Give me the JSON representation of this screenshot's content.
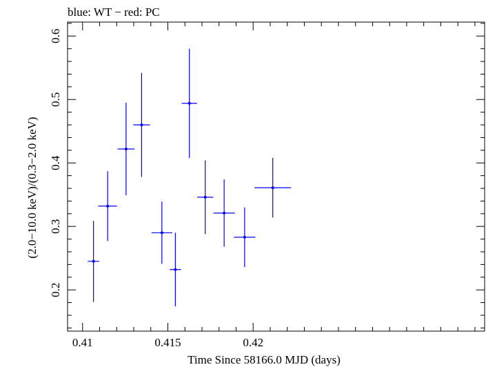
{
  "chart_data": {
    "type": "scatter",
    "title": "blue: WT − red: PC",
    "xlabel": "Time Since 58166.0 MJD (days)",
    "ylabel": "(2.0−10.0 keV)/(0.3−2.0 keV)",
    "xlim": [
      0.40912,
      0.43357
    ],
    "ylim": [
      0.135,
      0.622
    ],
    "x_ticks": [
      0.41,
      0.415,
      0.42
    ],
    "x_tick_labels": [
      "0.41",
      "0.415",
      "0.42"
    ],
    "y_ticks": [
      0.2,
      0.3,
      0.4,
      0.5,
      0.6
    ],
    "y_tick_labels": [
      "0.2",
      "0.3",
      "0.4",
      "0.5",
      "0.6"
    ],
    "grid": false,
    "series": [
      {
        "color": "#0000ff",
        "points": [
          {
            "x": 0.41064,
            "xerr": 0.00034,
            "y": 0.245,
            "yerr": 0.064
          },
          {
            "x": 0.41147,
            "xerr": 0.00055,
            "y": 0.332,
            "yerr": 0.055
          },
          {
            "x": 0.41255,
            "xerr": 0.0005,
            "y": 0.422,
            "yerr": 0.073
          },
          {
            "x": 0.41346,
            "xerr": 0.00049,
            "y": 0.46,
            "yerr": 0.082
          },
          {
            "x": 0.41465,
            "xerr": 0.00061,
            "y": 0.29,
            "yerr": 0.049
          },
          {
            "x": 0.41544,
            "xerr": 0.00033,
            "y": 0.232,
            "yerr": 0.058
          },
          {
            "x": 0.41626,
            "xerr": 0.00045,
            "y": 0.494,
            "yerr": 0.086
          },
          {
            "x": 0.41719,
            "xerr": 0.00047,
            "y": 0.346,
            "yerr": 0.058
          },
          {
            "x": 0.4183,
            "xerr": 0.00063,
            "y": 0.321,
            "yerr": 0.053
          },
          {
            "x": 0.4195,
            "xerr": 0.00063,
            "y": 0.283,
            "yerr": 0.047
          },
          {
            "x": 0.42115,
            "xerr": 0.00107,
            "y": 0.361,
            "yerr": 0.047
          }
        ]
      }
    ]
  }
}
